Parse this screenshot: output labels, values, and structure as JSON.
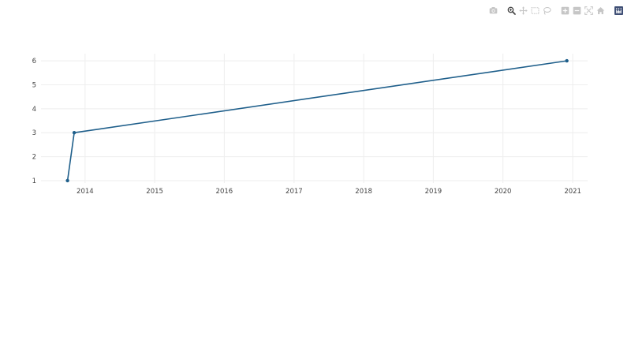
{
  "modebar": {
    "buttons": [
      {
        "name": "camera-icon",
        "group": 0
      },
      {
        "name": "zoom-icon",
        "group": 1,
        "active": true
      },
      {
        "name": "pan-icon",
        "group": 1
      },
      {
        "name": "box-select-icon",
        "group": 1
      },
      {
        "name": "lasso-select-icon",
        "group": 1
      },
      {
        "name": "zoom-in-icon",
        "group": 2
      },
      {
        "name": "zoom-out-icon",
        "group": 2
      },
      {
        "name": "autoscale-icon",
        "group": 2
      },
      {
        "name": "reset-axes-icon",
        "group": 2
      },
      {
        "name": "plotly-logo-icon",
        "group": 3
      }
    ],
    "icon_color": "#c6c6c6",
    "active_color": "#4a4a4a",
    "logo_color": "#3f4f75"
  },
  "chart_data": {
    "type": "line",
    "title": "",
    "xlabel": "",
    "ylabel": "",
    "x": [
      "2013-10-01",
      "2013-11-05",
      "2020-12-01"
    ],
    "series": [
      {
        "values": [
          1,
          3,
          6
        ],
        "color": "#1f5f8b"
      }
    ],
    "xlim": [
      "2013-05-15",
      "2021-03-20"
    ],
    "ylim": [
      0.9,
      6.3
    ],
    "x_ticks": [
      "2014",
      "2015",
      "2016",
      "2017",
      "2018",
      "2019",
      "2020",
      "2021"
    ],
    "y_ticks": [
      "1",
      "2",
      "3",
      "4",
      "5",
      "6"
    ],
    "grid": true,
    "markers": true
  }
}
